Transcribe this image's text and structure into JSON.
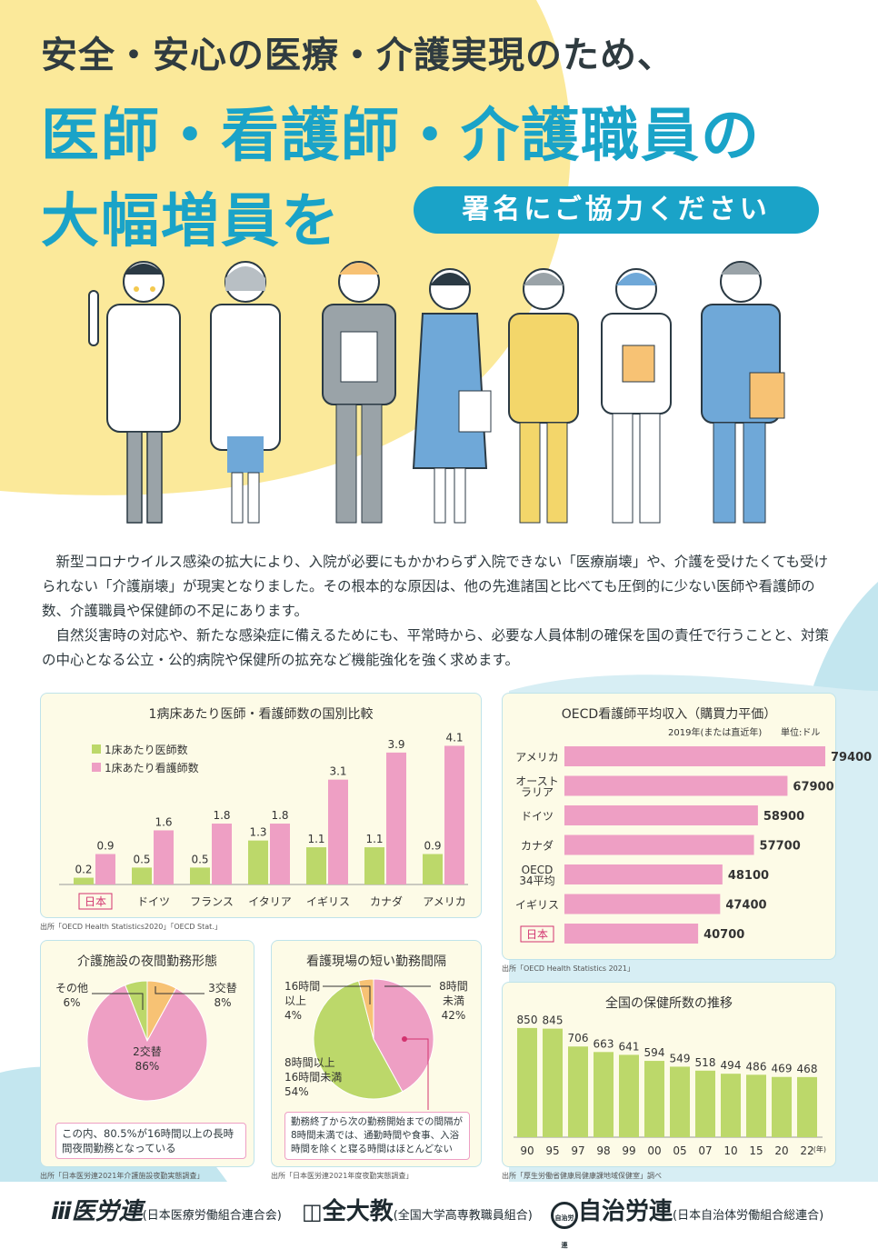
{
  "colors": {
    "accent": "#1aa3c8",
    "yellow": "#fbe99a",
    "lightblue": "#c3e6ef",
    "green": "#bcd86a",
    "pink": "#ee9fc4",
    "orange": "#f7c274"
  },
  "header": {
    "line1": "安全・安心の医療・介護実現のため、",
    "line2": "医師・看護師・介護職員の",
    "line3": "大幅増員を",
    "pill": "署名にご協力ください"
  },
  "intro": {
    "p1": "新型コロナウイルス感染の拡大により、入院が必要にもかかわらず入院できない「医療崩壊」や、介護を受けたくても受けられない「介護崩壊」が現実となりました。その根本的な原因は、他の先進諸国と比べても圧倒的に少ない医師や看護師の数、介護職員や保健師の不足にあります。",
    "p2": "自然災害時の対応や、新たな感染症に備えるためにも、平常時から、必要な人員体制の確保を国の責任で行うことと、対策の中心となる公立・公的病院や保健所の拡充など機能強化を強く求めます。"
  },
  "chart_data": [
    {
      "type": "bar",
      "title": "1病床あたり医師・看護師数の国別比較",
      "categories": [
        "日本",
        "ドイツ",
        "フランス",
        "イタリア",
        "イギリス",
        "カナダ",
        "アメリカ"
      ],
      "series": [
        {
          "name": "1床あたり医師数",
          "values": [
            0.2,
            0.5,
            0.5,
            1.3,
            1.1,
            1.1,
            0.9
          ]
        },
        {
          "name": "1床あたり看護師数",
          "values": [
            0.9,
            1.6,
            1.8,
            1.8,
            3.1,
            3.9,
            4.1
          ]
        }
      ],
      "ylim": [
        0,
        4.3
      ],
      "legend": "top-left",
      "source": "出所「OECD Health Statistics2020」「OECD Stat.」"
    },
    {
      "type": "bar",
      "orientation": "horizontal",
      "title": "OECD看護師平均収入（購買力平価）",
      "subtitle": "2019年(または直近年)",
      "unit": "単位:ドル",
      "categories": [
        "アメリカ",
        "オースト\nラリア",
        "ドイツ",
        "カナダ",
        "OECD\n34平均",
        "イギリス",
        "日本"
      ],
      "values": [
        79400,
        67900,
        58900,
        57700,
        48100,
        47400,
        40700
      ],
      "xlim": [
        0,
        83000
      ],
      "source": "出所「OECD Health Statistics 2021」"
    },
    {
      "type": "pie",
      "title": "介護施設の夜間勤務形態",
      "slices": [
        {
          "label": "3交替",
          "value": 8
        },
        {
          "label": "2交替",
          "value": 86
        },
        {
          "label": "その他",
          "value": 6
        }
      ],
      "note": "この内、80.5%が16時間以上の長時間夜間勤務となっている",
      "source": "出所「日本医労連2021年介護施設夜勤実態調査」"
    },
    {
      "type": "pie",
      "title": "看護現場の短い勤務間隔",
      "slices": [
        {
          "label": "8時間未満",
          "value": 42
        },
        {
          "label": "8時間以上16時間未満",
          "value": 54
        },
        {
          "label": "16時間以上",
          "value": 4
        }
      ],
      "note": "勤務終了から次の勤務開始までの間隔が8時間未満では、通勤時間や食事、入浴時間を除くと寝る時間はほとんどない",
      "source": "出所「日本医労連2021年度夜勤実態調査」"
    },
    {
      "type": "bar",
      "title": "全国の保健所数の推移",
      "categories": [
        "90",
        "95",
        "97",
        "98",
        "99",
        "00",
        "05",
        "07",
        "10",
        "15",
        "20",
        "22"
      ],
      "values": [
        850,
        845,
        706,
        663,
        641,
        594,
        549,
        518,
        494,
        486,
        469,
        468
      ],
      "x_unit": "(年)",
      "ylim": [
        0,
        920
      ],
      "source": "出所「厚生労働省健康局健康課地域保健室」調べ"
    }
  ],
  "labels": {
    "c1_left_label_y": "",
    "pie1": {
      "other_label": "その他",
      "other_pct": "6%",
      "three_label": "3交替",
      "three_pct": "8%",
      "two_label": "2交替",
      "two_pct": "86%"
    },
    "pie2": {
      "a_label1": "16時間",
      "a_label2": "以上",
      "a_pct": "4%",
      "b_label1": "8時間",
      "b_label2": "未満",
      "b_pct": "42%",
      "c_label1": "8時間以上",
      "c_label2": "16時間未満",
      "c_pct": "54%"
    }
  },
  "footer": {
    "org1": "医労連",
    "org1_full": "(日本医療労働組合連合会)",
    "org2": "全大教",
    "org2_full": "(全国大学高専教職員組合)",
    "org3_badge": "自治労連",
    "org3": "自治労連",
    "org3_full": "(日本自治体労働組合総連合)"
  }
}
